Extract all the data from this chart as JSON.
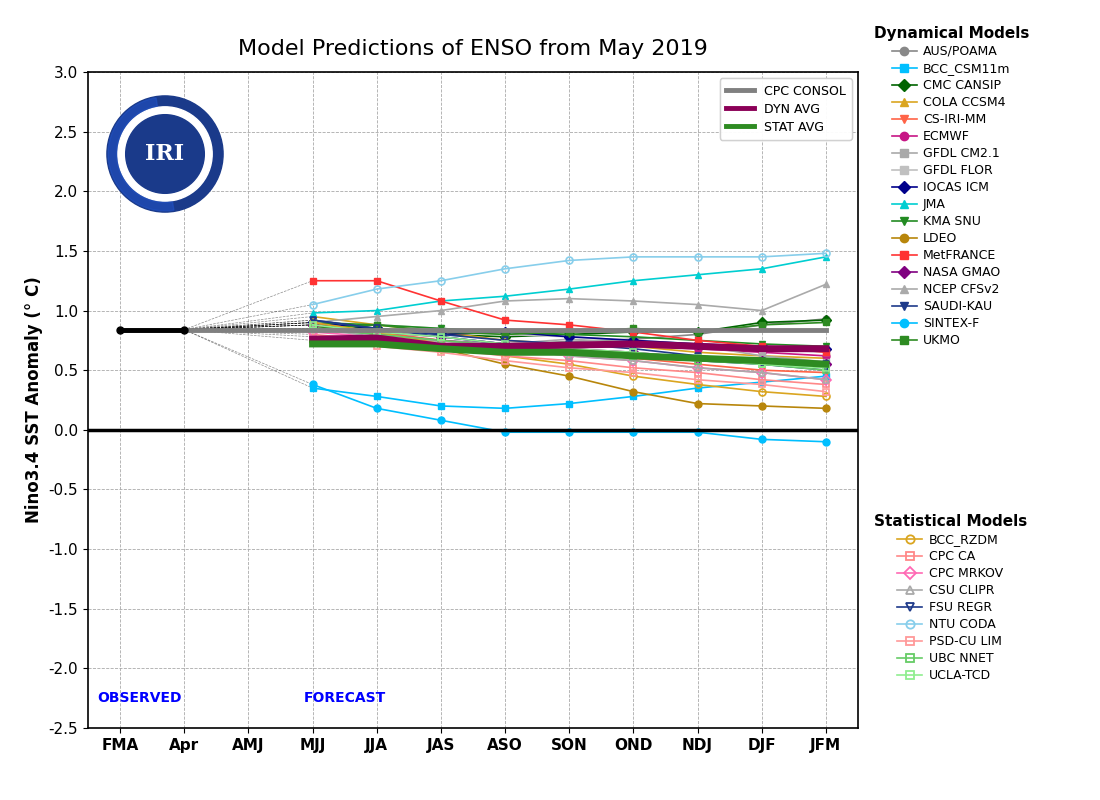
{
  "title": "Model Predictions of ENSO from May 2019",
  "ylabel": "Nino3.4 SST Anomaly (° C)",
  "xticks": [
    "FMA",
    "Apr",
    "AMJ",
    "MJJ",
    "JJA",
    "JAS",
    "ASO",
    "SON",
    "OND",
    "NDJ",
    "DJF",
    "JFM"
  ],
  "ylim": [
    -2.5,
    3.0
  ],
  "yticks": [
    -2.5,
    -2.0,
    -1.5,
    -1.0,
    -0.5,
    0.0,
    0.5,
    1.0,
    1.5,
    2.0,
    2.5,
    3.0
  ],
  "observed_val": 0.84,
  "apr_val": 0.84,
  "cpc_consol": [
    0.84,
    0.84,
    null,
    null,
    null,
    null,
    null,
    null,
    null,
    null,
    null,
    null
  ],
  "dyn_avg": [
    null,
    null,
    null,
    0.76,
    0.77,
    0.7,
    0.7,
    0.71,
    0.72,
    0.7,
    0.68,
    0.68
  ],
  "stat_avg": [
    null,
    null,
    null,
    0.72,
    0.72,
    0.68,
    0.65,
    0.65,
    0.62,
    0.6,
    0.58,
    0.55
  ],
  "dynamical_models": {
    "AUS/POAMA": {
      "color": "#888888",
      "marker": "o",
      "lw": 1.2,
      "ms": 5,
      "values": [
        null,
        null,
        null,
        0.85,
        0.8,
        0.75,
        0.72,
        0.74,
        0.76,
        0.8,
        0.88,
        0.93
      ]
    },
    "BCC_CSM11m": {
      "color": "#00BFFF",
      "marker": "s",
      "lw": 1.2,
      "ms": 5,
      "values": [
        null,
        null,
        null,
        0.35,
        0.28,
        0.2,
        0.18,
        0.22,
        0.28,
        0.35,
        0.4,
        0.45
      ]
    },
    "CMC CANSIP": {
      "color": "#006400",
      "marker": "D",
      "lw": 1.2,
      "ms": 5,
      "values": [
        null,
        null,
        null,
        0.88,
        0.85,
        0.8,
        0.78,
        0.8,
        0.82,
        0.82,
        0.9,
        0.92
      ]
    },
    "COLA CCSM4": {
      "color": "#DAA520",
      "marker": "^",
      "lw": 1.2,
      "ms": 5,
      "values": [
        null,
        null,
        null,
        0.95,
        0.88,
        0.82,
        0.75,
        0.72,
        0.7,
        0.65,
        0.62,
        0.6
      ]
    },
    "CS-IRI-MM": {
      "color": "#FF6347",
      "marker": "v",
      "lw": 1.2,
      "ms": 5,
      "values": [
        null,
        null,
        null,
        0.9,
        0.82,
        0.75,
        0.68,
        0.65,
        0.6,
        0.55,
        0.5,
        0.48
      ]
    },
    "ECMWF": {
      "color": "#C71585",
      "marker": "o",
      "lw": 1.2,
      "ms": 5,
      "values": [
        null,
        null,
        null,
        0.88,
        0.8,
        0.75,
        0.7,
        0.72,
        0.7,
        0.68,
        0.65,
        0.62
      ]
    },
    "GFDL CM2.1": {
      "color": "#A9A9A9",
      "marker": "s",
      "lw": 1.2,
      "ms": 5,
      "values": [
        null,
        null,
        null,
        0.78,
        0.78,
        0.74,
        0.72,
        0.76,
        0.73,
        0.71,
        0.62,
        0.57
      ]
    },
    "GFDL FLOR": {
      "color": "#C0C0C0",
      "marker": "s",
      "lw": 1.2,
      "ms": 5,
      "values": [
        null,
        null,
        null,
        0.84,
        0.88,
        0.85,
        0.8,
        0.78,
        0.75,
        0.72,
        0.68,
        0.65
      ]
    },
    "IOCAS ICM": {
      "color": "#00008B",
      "marker": "D",
      "lw": 1.2,
      "ms": 5,
      "values": [
        null,
        null,
        null,
        0.9,
        0.85,
        0.8,
        0.82,
        0.78,
        0.75,
        0.72,
        0.7,
        0.68
      ]
    },
    "JMA": {
      "color": "#00CED1",
      "marker": "^",
      "lw": 1.2,
      "ms": 5,
      "values": [
        null,
        null,
        null,
        0.98,
        1.0,
        1.08,
        1.12,
        1.18,
        1.25,
        1.3,
        1.35,
        1.45
      ]
    },
    "KMA SNU": {
      "color": "#228B22",
      "marker": "v",
      "lw": 1.2,
      "ms": 5,
      "values": [
        null,
        null,
        null,
        0.9,
        0.88,
        0.85,
        0.82,
        0.8,
        0.78,
        0.75,
        0.72,
        0.7
      ]
    },
    "LDEO": {
      "color": "#B8860B",
      "marker": "o",
      "lw": 1.2,
      "ms": 5,
      "values": [
        null,
        null,
        null,
        0.88,
        0.8,
        0.68,
        0.55,
        0.45,
        0.32,
        0.22,
        0.2,
        0.18
      ]
    },
    "MetFRANCE": {
      "color": "#FF3333",
      "marker": "s",
      "lw": 1.2,
      "ms": 5,
      "values": [
        null,
        null,
        null,
        1.25,
        1.25,
        1.08,
        0.92,
        0.88,
        0.82,
        0.75,
        0.7,
        0.65
      ]
    },
    "NASA GMAO": {
      "color": "#800080",
      "marker": "D",
      "lw": 1.2,
      "ms": 5,
      "values": [
        null,
        null,
        null,
        0.88,
        0.82,
        0.78,
        0.72,
        0.68,
        0.65,
        0.6,
        0.58,
        0.55
      ]
    },
    "NCEP CFSv2": {
      "color": "#AAAAAA",
      "marker": "^",
      "lw": 1.2,
      "ms": 5,
      "values": [
        null,
        null,
        null,
        0.9,
        0.95,
        1.0,
        1.08,
        1.1,
        1.08,
        1.05,
        1.0,
        1.22
      ]
    },
    "SAUDI-KAU": {
      "color": "#1E3A8A",
      "marker": "v",
      "lw": 1.2,
      "ms": 5,
      "values": [
        null,
        null,
        null,
        0.92,
        0.85,
        0.78,
        0.72,
        0.68,
        0.62,
        0.58,
        0.55,
        0.5
      ]
    },
    "SINTEX-F": {
      "color": "#00BFFF",
      "marker": "o",
      "lw": 1.2,
      "ms": 5,
      "values": [
        null,
        null,
        null,
        0.38,
        0.18,
        0.08,
        -0.02,
        -0.02,
        -0.02,
        -0.02,
        -0.08,
        -0.1
      ]
    },
    "UKMO": {
      "color": "#2E8B22",
      "marker": "s",
      "lw": 1.2,
      "ms": 5,
      "values": [
        null,
        null,
        null,
        0.85,
        0.88,
        0.82,
        0.8,
        0.82,
        0.85,
        0.82,
        0.88,
        0.9
      ]
    }
  },
  "statistical_models": {
    "BCC_RZDM": {
      "color": "#DAA520",
      "marker": "o",
      "values": [
        null,
        null,
        null,
        0.9,
        0.82,
        0.72,
        0.62,
        0.55,
        0.45,
        0.38,
        0.32,
        0.28
      ]
    },
    "CPC CA": {
      "color": "#FF8888",
      "marker": "s",
      "values": [
        null,
        null,
        null,
        0.8,
        0.75,
        0.68,
        0.62,
        0.58,
        0.52,
        0.48,
        0.42,
        0.38
      ]
    },
    "CPC MRKOV": {
      "color": "#FF69B4",
      "marker": "D",
      "values": [
        null,
        null,
        null,
        0.82,
        0.78,
        0.72,
        0.68,
        0.62,
        0.58,
        0.52,
        0.48,
        0.42
      ]
    },
    "CSU CLIPR": {
      "color": "#AAAAAA",
      "marker": "^",
      "values": [
        null,
        null,
        null,
        0.85,
        0.78,
        0.72,
        0.68,
        0.62,
        0.58,
        0.52,
        0.48,
        0.42
      ]
    },
    "FSU REGR": {
      "color": "#1E3A8A",
      "marker": "v",
      "values": [
        null,
        null,
        null,
        0.92,
        0.85,
        0.8,
        0.75,
        0.72,
        0.68,
        0.62,
        0.58,
        0.55
      ]
    },
    "NTU CODA": {
      "color": "#87CEEB",
      "marker": "o",
      "values": [
        null,
        null,
        null,
        1.05,
        1.18,
        1.25,
        1.35,
        1.42,
        1.45,
        1.45,
        1.45,
        1.48
      ]
    },
    "PSD-CU LIM": {
      "color": "#FF9999",
      "marker": "s",
      "values": [
        null,
        null,
        null,
        0.75,
        0.7,
        0.65,
        0.58,
        0.52,
        0.48,
        0.42,
        0.38,
        0.32
      ]
    },
    "UBC NNET": {
      "color": "#66CC66",
      "marker": "s",
      "values": [
        null,
        null,
        null,
        0.85,
        0.8,
        0.75,
        0.7,
        0.65,
        0.62,
        0.58,
        0.55,
        0.5
      ]
    },
    "UCLA-TCD": {
      "color": "#90EE90",
      "marker": "s",
      "values": [
        null,
        null,
        null,
        0.88,
        0.82,
        0.78,
        0.72,
        0.68,
        0.65,
        0.6,
        0.55,
        0.52
      ]
    }
  },
  "background_color": "#ffffff",
  "cpc_color": "#808080",
  "dyn_color": "#8B0057",
  "stat_color": "#2E8B22"
}
